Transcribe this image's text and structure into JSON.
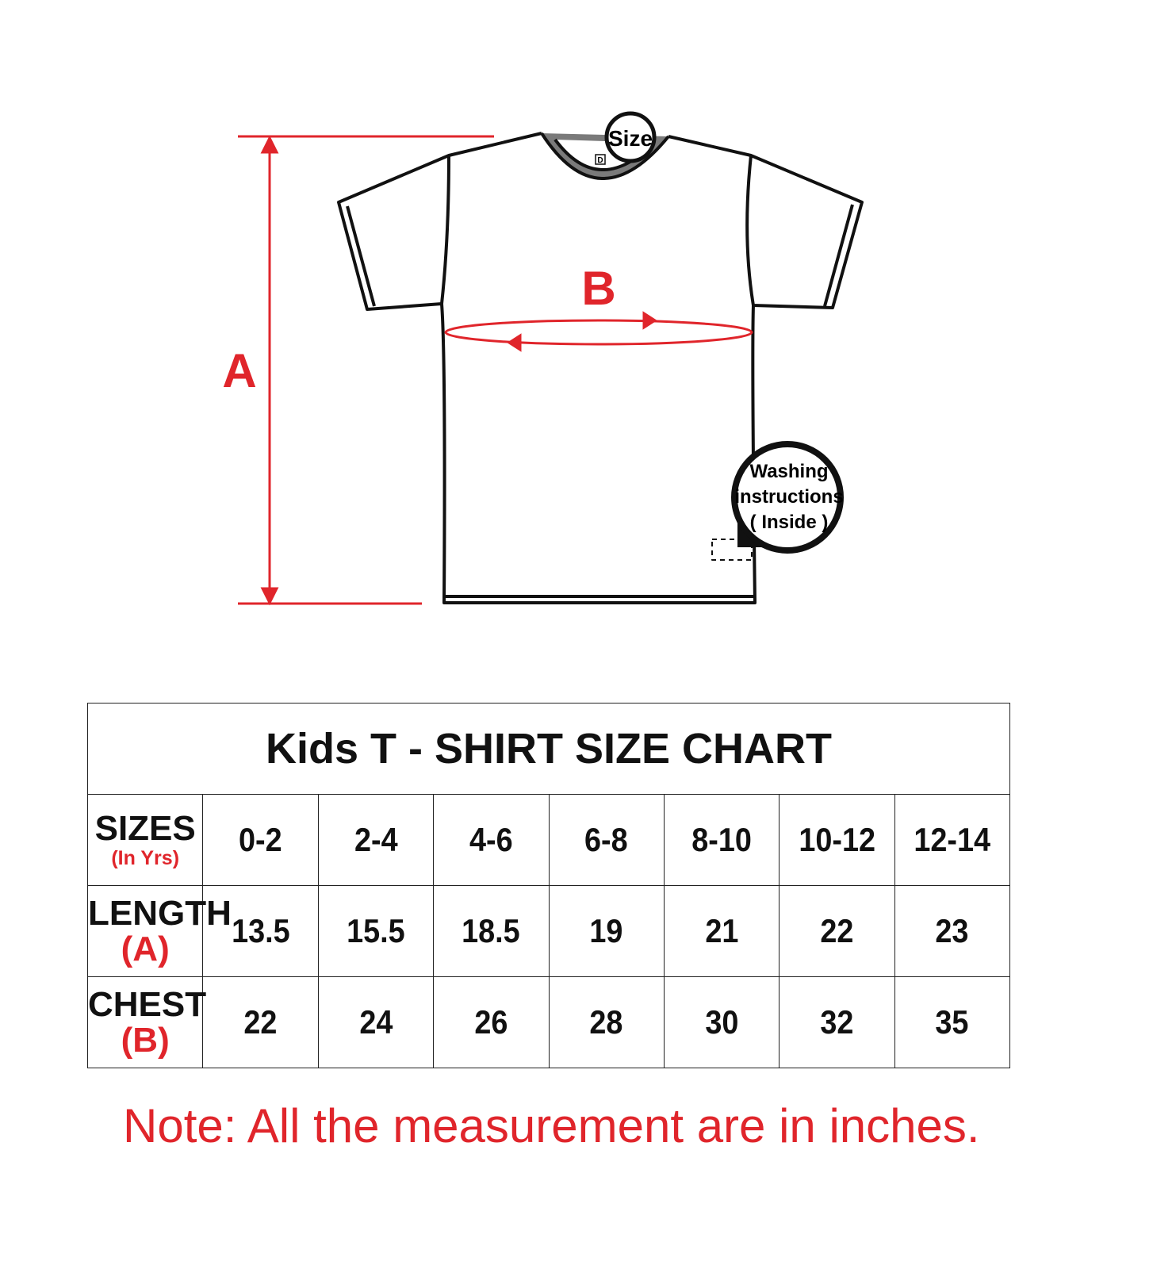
{
  "diagram": {
    "label_a": "A",
    "label_b": "B",
    "size_tag": "Size",
    "tag_letter": "D",
    "washing_label": [
      "Washing",
      "instructions",
      "( Inside )"
    ],
    "accent_color": "#e0252b",
    "collar_color": "#7a7a7a"
  },
  "table": {
    "title": "Kids T - SHIRT SIZE CHART",
    "rows": [
      {
        "label": "SIZES",
        "sub": "(In Yrs)",
        "values": [
          "0-2",
          "2-4",
          "4-6",
          "6-8",
          "8-10",
          "10-12",
          "12-14"
        ]
      },
      {
        "label": "LENGTH",
        "sub": "(A)",
        "values": [
          "13.5",
          "15.5",
          "18.5",
          "19",
          "21",
          "22",
          "23"
        ]
      },
      {
        "label": "CHEST",
        "sub": "(B)",
        "values": [
          "22",
          "24",
          "26",
          "28",
          "30",
          "32",
          "35"
        ]
      }
    ]
  },
  "note": "Note: All the measurement are in inches."
}
